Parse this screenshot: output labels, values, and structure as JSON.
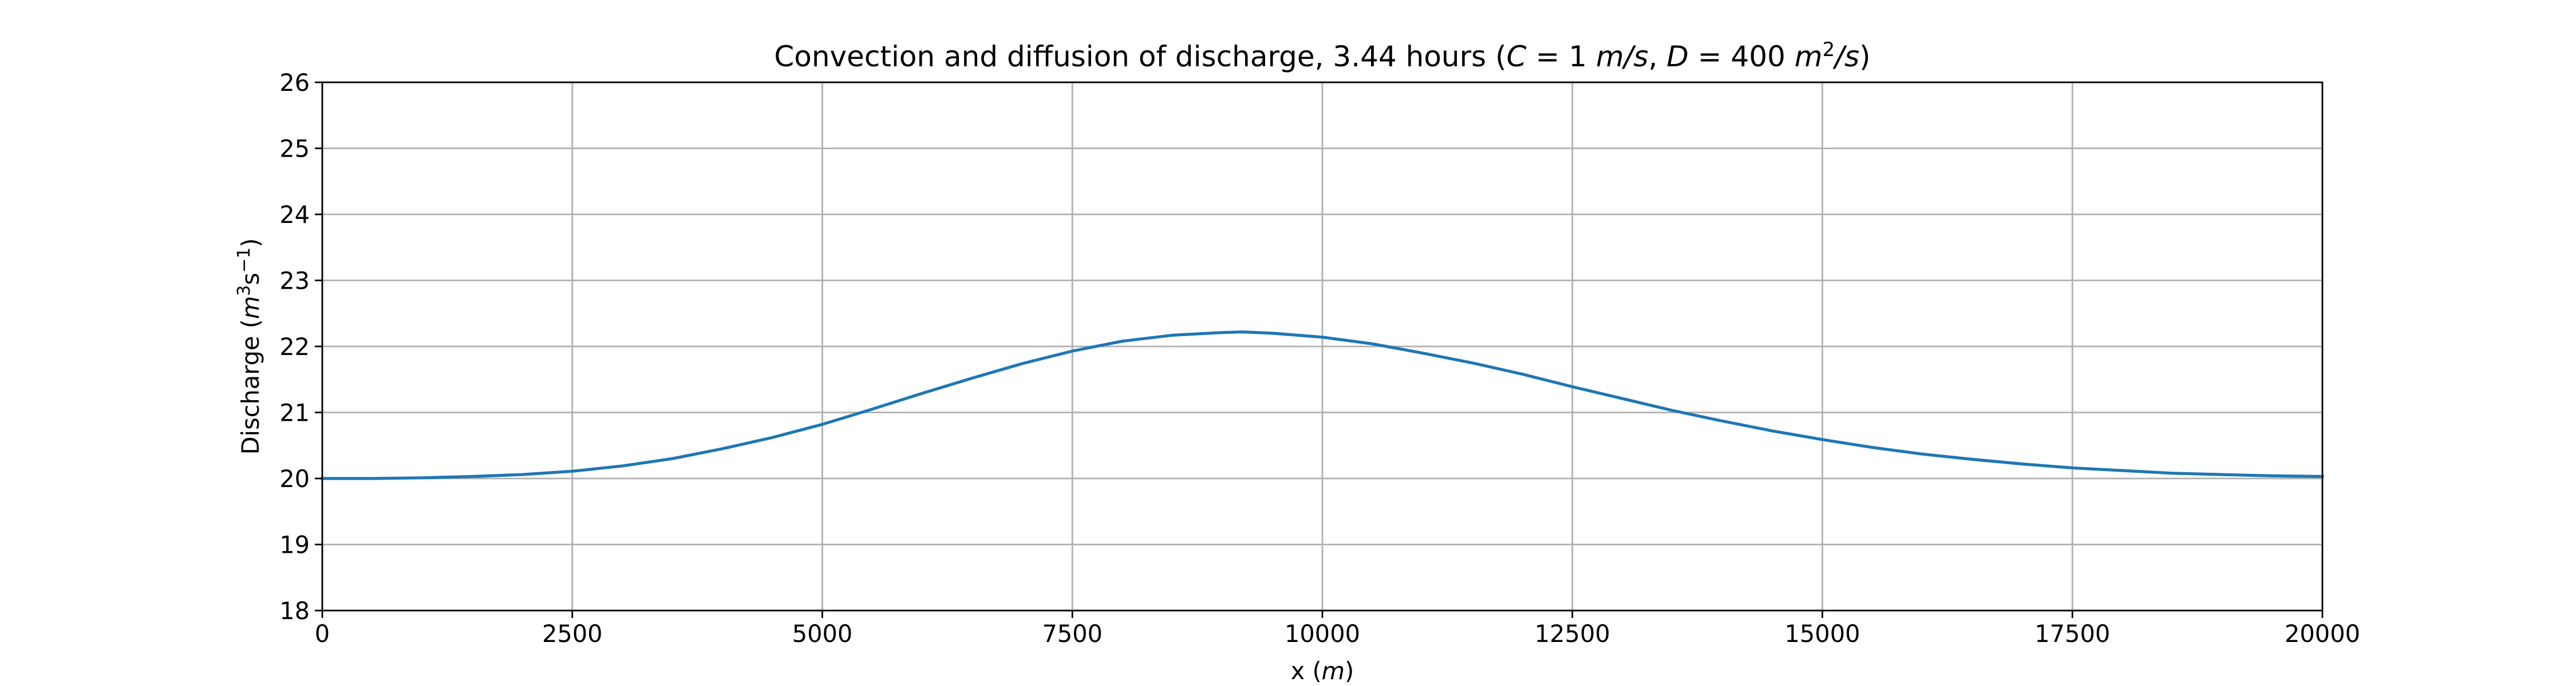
{
  "chart_data": {
    "type": "line",
    "title_prefix": "Convection and diffusion of discharge, 3.44 hours (",
    "title_suffix": ")",
    "title_math": {
      "c_var": "C",
      "c_eq": " = 1 ",
      "c_unit_base": "m",
      "c_unit_rest": "/s",
      "sep": ", ",
      "d_var": "D",
      "d_eq": " = 400 ",
      "d_unit_base": "m",
      "d_unit_exp": "2",
      "d_unit_rest": "/s"
    },
    "xlabel_prefix": "x (",
    "xlabel_unit": "m",
    "xlabel_suffix": ")",
    "ylabel_prefix": "Discharge (",
    "ylabel_unit_base": "m",
    "ylabel_unit_exp": "3",
    "ylabel_unit_s": "s",
    "ylabel_unit_exp2": "−1",
    "ylabel_suffix": ")",
    "xlim": [
      0,
      20000
    ],
    "ylim": [
      18,
      26
    ],
    "xticks": [
      0,
      2500,
      5000,
      7500,
      10000,
      12500,
      15000,
      17500,
      20000
    ],
    "yticks": [
      18,
      19,
      20,
      21,
      22,
      23,
      24,
      25,
      26
    ],
    "grid": true,
    "series": [
      {
        "color": "#1f77b4",
        "x": [
          0,
          500,
          1000,
          1500,
          2000,
          2500,
          3000,
          3500,
          4000,
          4500,
          5000,
          5500,
          6000,
          6500,
          7000,
          7500,
          8000,
          8500,
          9000,
          9200,
          9500,
          10000,
          10500,
          11000,
          11500,
          12000,
          12500,
          13000,
          13500,
          14000,
          14500,
          15000,
          15500,
          16000,
          16500,
          17000,
          17500,
          18000,
          18500,
          19000,
          19500,
          20000
        ],
        "y": [
          20.0,
          20.0,
          20.01,
          20.03,
          20.06,
          20.11,
          20.19,
          20.3,
          20.45,
          20.62,
          20.82,
          21.05,
          21.29,
          21.52,
          21.74,
          21.93,
          22.08,
          22.17,
          22.21,
          22.22,
          22.2,
          22.14,
          22.04,
          21.9,
          21.75,
          21.58,
          21.39,
          21.21,
          21.03,
          20.87,
          20.72,
          20.59,
          20.47,
          20.37,
          20.29,
          20.22,
          20.16,
          20.12,
          20.08,
          20.06,
          20.04,
          20.03
        ]
      }
    ]
  }
}
